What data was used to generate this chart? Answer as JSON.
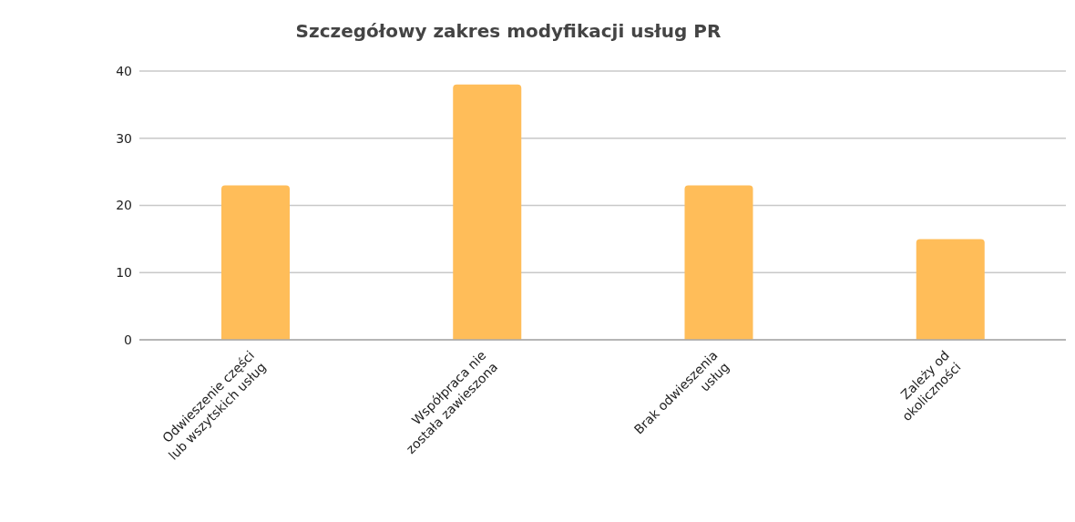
{
  "chart_data": {
    "type": "bar",
    "title": "Szczegółowy zakres modyfikacji usług PR",
    "categories": [
      "Odwieszenie części lub wszytskich usług",
      "Współpraca nie została zawieszona",
      "Brak odwieszenia usług",
      "Zależy od okoliczności"
    ],
    "values": [
      23,
      38,
      23,
      15
    ],
    "color": "#ffbd59",
    "ylim": [
      0,
      40
    ],
    "yticks": [
      0,
      10,
      20,
      30,
      40
    ],
    "grid": "y",
    "legend": false
  }
}
